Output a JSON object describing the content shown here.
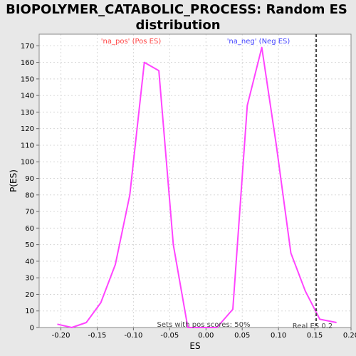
{
  "chart_data": {
    "type": "line",
    "title_line1": "BIOPOLYMER_CATABOLIC_PROCESS: Random ES",
    "title_line2": "distribution",
    "xlabel": "ES",
    "ylabel": "P(ES)",
    "xlim": [
      -0.23,
      0.2
    ],
    "ylim": [
      0,
      177
    ],
    "x_ticks": [
      -0.2,
      -0.15,
      -0.1,
      -0.05,
      0.0,
      0.05,
      0.1,
      0.15,
      0.2
    ],
    "x_tick_labels": [
      "-0.20",
      "-0.15",
      "-0.10",
      "-0.05",
      "0.00",
      "0.05",
      "0.10",
      "0.15",
      "0.20"
    ],
    "y_ticks": [
      0,
      10,
      20,
      30,
      40,
      50,
      60,
      70,
      80,
      90,
      100,
      110,
      120,
      130,
      140,
      150,
      160,
      170
    ],
    "grid": true,
    "series": [
      {
        "color": "#ff44ff",
        "x": [
          -0.205,
          -0.185,
          -0.165,
          -0.145,
          -0.125,
          -0.105,
          -0.085,
          -0.065,
          -0.045,
          -0.025,
          -0.005,
          0.015,
          0.037,
          0.057,
          0.077,
          0.097,
          0.117,
          0.137,
          0.157,
          0.18
        ],
        "y": [
          2,
          0,
          3,
          15,
          38,
          80,
          160,
          155,
          50,
          0,
          0,
          0,
          11,
          134,
          169,
          110,
          45,
          22,
          5,
          3
        ]
      }
    ],
    "real_es": 0.152,
    "annotations": {
      "pos_label": "'na_pos' (Pos ES)",
      "neg_label": "'na_neg' (Neg ES)",
      "sets_label": "Sets with pos scores: 50%",
      "real_label": "Real ES 0.2",
      "pos_color": "#ff4444",
      "neg_color": "#4444ff"
    }
  }
}
